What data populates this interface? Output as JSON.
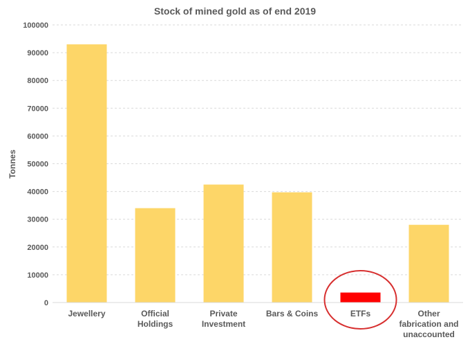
{
  "chart_data": {
    "type": "bar",
    "title": "Stock of mined gold as of end 2019",
    "xlabel": "",
    "ylabel": "Tonnes",
    "ylim": [
      0,
      100000
    ],
    "yticks": [
      0,
      10000,
      20000,
      30000,
      40000,
      50000,
      60000,
      70000,
      80000,
      90000,
      100000
    ],
    "grid": true,
    "categories": [
      [
        "Jewellery"
      ],
      [
        "Official",
        "Holdings"
      ],
      [
        "Private",
        "Investment"
      ],
      [
        "Bars & Coins"
      ],
      [
        "ETFs"
      ],
      [
        "Other",
        "fabrication and",
        "unaccounted"
      ]
    ],
    "values": [
      93000,
      34000,
      42500,
      39700,
      3600,
      28000
    ],
    "bar_color": "#FDD668",
    "highlight": {
      "index": 4,
      "color": "#FF0000",
      "circle_color": "#D72F2F"
    },
    "grid_color": "#D9D9D9",
    "axis_color": "#D9D9D9",
    "text_color": "#595959"
  }
}
